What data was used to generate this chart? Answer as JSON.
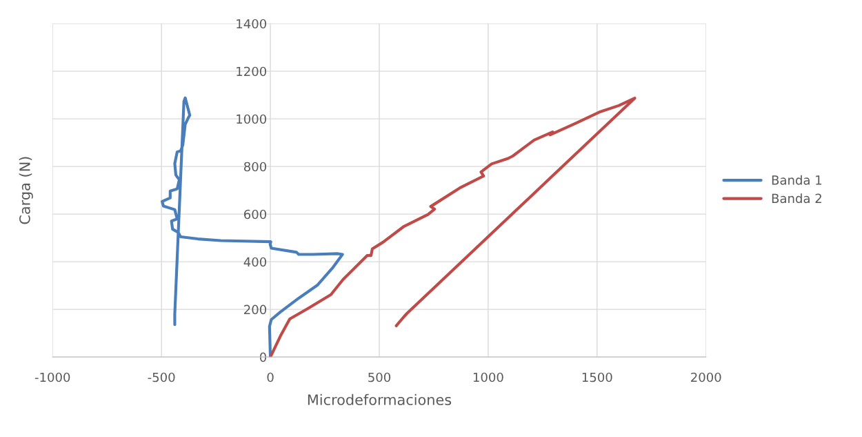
{
  "chart_data": {
    "type": "line",
    "xlabel": "Microdeformaciones",
    "ylabel": "Carga (N)",
    "xlim": [
      -1000,
      2000
    ],
    "xticks": [
      -1000,
      -500,
      0,
      500,
      1000,
      1500,
      2000
    ],
    "ylim": [
      0,
      1400
    ],
    "yticks": [
      0,
      200,
      400,
      600,
      800,
      1000,
      1200,
      1400
    ],
    "grid": true,
    "legend": "right",
    "marker": "none",
    "line_style": "solid",
    "series": [
      {
        "name": "Banda 1",
        "color": "#4a7ebb",
        "x": [
          0,
          -4,
          4,
          46,
          130,
          215,
          288,
          331,
          310,
          194,
          130,
          120,
          4,
          -1,
          2,
          -228,
          -333,
          -412,
          -423,
          -449,
          -454,
          -428,
          -439,
          -491,
          -497,
          -460,
          -460,
          -428,
          -418,
          -434,
          -439,
          -428,
          -412,
          -402,
          -391,
          -376,
          -370,
          -391,
          -397,
          -439,
          -439
        ],
        "values": [
          0,
          128,
          157,
          189,
          247,
          301,
          377,
          431,
          434,
          431,
          431,
          440,
          457,
          474,
          484,
          489,
          496,
          505,
          523,
          537,
          571,
          580,
          619,
          634,
          653,
          668,
          697,
          706,
          745,
          764,
          812,
          861,
          866,
          890,
          977,
          1006,
          1015,
          1088,
          1073,
          180,
          136
        ]
      },
      {
        "name": "Banda 2",
        "color": "#be4b48",
        "x": [
          0,
          46,
          89,
          173,
          278,
          334,
          444,
          462,
          468,
          517,
          614,
          724,
          754,
          736,
          870,
          979,
          967,
          1016,
          1089,
          1113,
          1211,
          1296,
          1284,
          1405,
          1509,
          1600,
          1673,
          627,
          614,
          578
        ],
        "values": [
          0,
          88,
          160,
          204,
          262,
          326,
          426,
          426,
          454,
          482,
          549,
          599,
          621,
          632,
          710,
          760,
          777,
          811,
          833,
          844,
          911,
          945,
          933,
          983,
          1028,
          1056,
          1087,
          183,
          170,
          131
        ]
      }
    ]
  }
}
